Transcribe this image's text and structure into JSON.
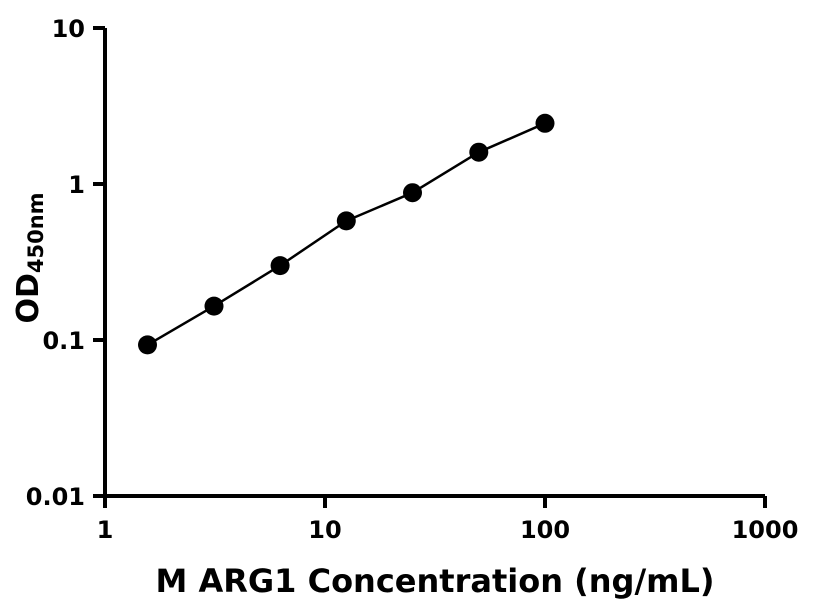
{
  "chart_data": {
    "type": "scatter",
    "title": "",
    "xlabel": "M ARG1 Concentration (ng/mL)",
    "ylabel": "OD",
    "ylabel_subscript": "450nm",
    "xscale": "log",
    "yscale": "log",
    "xlim": [
      1,
      1000
    ],
    "ylim": [
      0.01,
      10
    ],
    "x_ticks": [
      1,
      10,
      100,
      1000
    ],
    "x_tick_labels": [
      "1",
      "10",
      "100",
      "1000"
    ],
    "y_ticks": [
      0.01,
      0.1,
      1,
      10
    ],
    "y_tick_labels": [
      "0.01",
      "0.1",
      "1",
      "10"
    ],
    "x": [
      1.56,
      3.13,
      6.25,
      12.5,
      25,
      50,
      100
    ],
    "y": [
      0.093,
      0.165,
      0.3,
      0.58,
      0.88,
      1.6,
      2.45
    ],
    "grid": false,
    "legend": false,
    "marker": "filled-circle",
    "marker_color": "#000000",
    "line_color": "#000000",
    "axis_color": "#000000",
    "background": "#ffffff"
  }
}
